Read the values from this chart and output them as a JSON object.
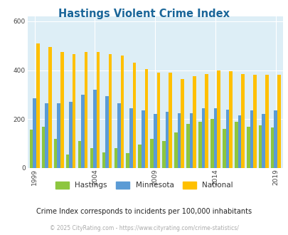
{
  "title": "Hastings Violent Crime Index",
  "title_color": "#1a6699",
  "hastings_vals": [
    158,
    170,
    120,
    55,
    110,
    80,
    65,
    80,
    60,
    95,
    120,
    110,
    145,
    180,
    190,
    200,
    160,
    190,
    170,
    175,
    165
  ],
  "minnesota_vals": [
    285,
    265,
    265,
    270,
    300,
    320,
    295,
    265,
    245,
    235,
    220,
    230,
    225,
    225,
    245,
    245,
    240,
    215,
    235,
    220,
    235
  ],
  "national_vals": [
    510,
    495,
    475,
    465,
    475,
    475,
    465,
    460,
    430,
    405,
    390,
    390,
    365,
    375,
    385,
    400,
    395,
    385,
    380,
    380,
    380
  ],
  "years_data": [
    1999,
    2000,
    2001,
    2002,
    2003,
    2004,
    2005,
    2006,
    2007,
    2008,
    2009,
    2010,
    2011,
    2012,
    2013,
    2014,
    2015,
    2016,
    2017,
    2018,
    2019
  ],
  "color_hastings": "#8dc63f",
  "color_minnesota": "#5b9bd5",
  "color_national": "#ffc000",
  "background_color": "#ddeef6",
  "ylim": [
    0,
    620
  ],
  "yticks": [
    0,
    200,
    400,
    600
  ],
  "xtick_labels": [
    "1999",
    "2004",
    "2009",
    "2014",
    "2019"
  ],
  "xtick_positions": [
    1999,
    2004,
    2009,
    2014,
    2019
  ],
  "footer_text": "© 2025 CityRating.com - https://www.cityrating.com/crime-statistics/",
  "subtitle": "Crime Index corresponds to incidents per 100,000 inhabitants",
  "legend_labels": [
    "Hastings",
    "Minnesota",
    "National"
  ]
}
